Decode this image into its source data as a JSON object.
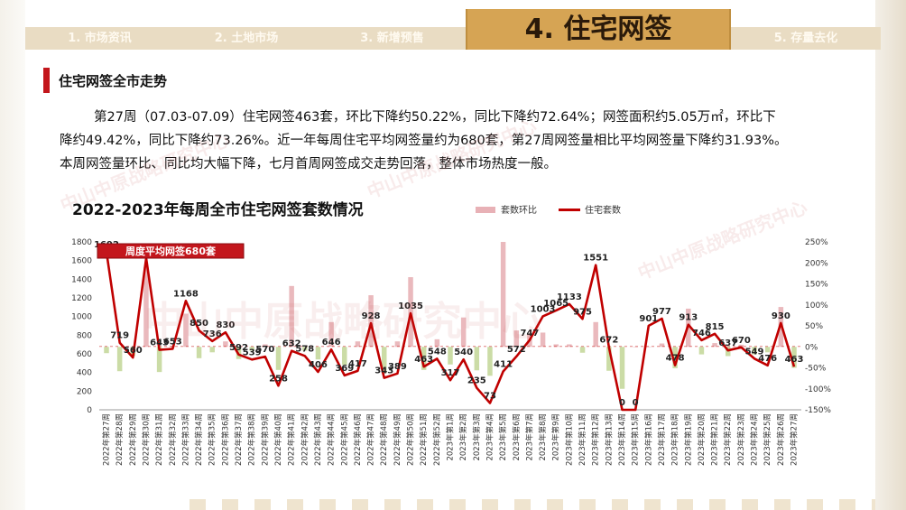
{
  "nav": {
    "tabs": [
      {
        "label": "1. 市场资讯"
      },
      {
        "label": "2. 土地市场"
      },
      {
        "label": "3. 新增预售"
      },
      {
        "label": "4. 住宅网签"
      },
      {
        "label": "5. 存量去化"
      }
    ],
    "active_index": 3
  },
  "section": {
    "title": "住宅网签全市走势"
  },
  "paragraph": [
    "第27周（07.03-07.09）住宅网签463套，环比下降约50.22%，同比下降约72.64%；网签面积约5.05万㎡，环比下",
    "降约49.42%，同比下降约73.26%。近一年每周住宅平均网签量约为680套，第27周网签量相比平均网签量下降约31.93%。",
    "本周网签量环比、同比均大幅下降，七月首周网签成交走势回落，整体市场热度一般。"
  ],
  "watermark": "中山中原战略研究中心",
  "chart_data": {
    "type": "bar+line",
    "title": "2022-2023年每周全市住宅网签套数情况",
    "legend": [
      "套数环比",
      "住宅套数"
    ],
    "annotation": "周度平均网签680套",
    "average_line": 680,
    "y_left": {
      "min": 0,
      "max": 1800,
      "ticks": [
        0,
        200,
        400,
        600,
        800,
        1000,
        1200,
        1400,
        1600,
        1800
      ]
    },
    "y_right": {
      "min": -150,
      "max": 250,
      "ticks": [
        "-150%",
        "-100%",
        "-50%",
        "0%",
        "50%",
        "100%",
        "150%",
        "200%",
        "250%"
      ]
    },
    "categories": [
      "2022年第27周",
      "2022年第28周",
      "2022年第29周",
      "2022年第30周",
      "2022年第31周",
      "2022年第32周",
      "2022年第33周",
      "2022年第34周",
      "2022年第35周",
      "2022年第36周",
      "2022年第37周",
      "2022年第38周",
      "2022年第39周",
      "2022年第40周",
      "2022年第41周",
      "2022年第42周",
      "2022年第43周",
      "2022年第44周",
      "2022年第45周",
      "2022年第46周",
      "2022年第47周",
      "2022年第48周",
      "2022年第49周",
      "2022年第50周",
      "2022年第51周",
      "2022年第52周",
      "2023年第1周",
      "2023年第2周",
      "2023年第3周",
      "2023年第4周",
      "2023年第5周",
      "2023年第6周",
      "2023年第7周",
      "2023年第8周",
      "2023年第9周",
      "2023年第10周",
      "2023年第11周",
      "2023年第12周",
      "2023年第13周",
      "2023年第14周",
      "2023年第15周",
      "2023年第16周",
      "2023年第17周",
      "2023年第18周",
      "2023年第19周",
      "2023年第20周",
      "2023年第21周",
      "2023年第22周",
      "2023年第23周",
      "2023年第24周",
      "2023年第25周",
      "2023年第26周",
      "2023年第27周"
    ],
    "series": [
      {
        "name": "住宅套数",
        "type": "line",
        "values": [
          1692,
          719,
          560,
          1625,
          643,
          653,
          1168,
          850,
          736,
          830,
          592,
          539,
          570,
          258,
          632,
          578,
          406,
          646,
          369,
          417,
          928,
          343,
          389,
          1035,
          463,
          548,
          317,
          540,
          235,
          73,
          411,
          572,
          747,
          1003,
          1065,
          1133,
          975,
          1551,
          672,
          0,
          0,
          901,
          977,
          478,
          913,
          746,
          815,
          637,
          670,
          549,
          476,
          930,
          463
        ]
      },
      {
        "name": "套数环比",
        "type": "bar",
        "values": [
          -15,
          -58,
          -22,
          190,
          -60,
          2,
          79,
          -27,
          -13,
          13,
          -29,
          -9,
          6,
          -55,
          145,
          -9,
          -30,
          59,
          -43,
          13,
          123,
          -63,
          13,
          166,
          -55,
          18,
          -42,
          70,
          -56,
          -69,
          463,
          39,
          31,
          34,
          6,
          6,
          -14,
          59,
          -57,
          -100,
          0,
          0,
          8,
          -51,
          91,
          -18,
          9,
          -22,
          5,
          -18,
          -13,
          95,
          -50
        ]
      }
    ],
    "point_labels": [
      "1692",
      "719",
      "560",
      "1625",
      "643",
      "653",
      "1168",
      "850",
      "736",
      "830",
      "592",
      "539",
      "570",
      "258",
      "632",
      "578",
      "406",
      "646",
      "369",
      "417",
      "928",
      "343",
      "389",
      "1035",
      "463",
      "548",
      "317",
      "540",
      "235",
      "73",
      "411",
      "572",
      "747",
      "1003",
      "1065",
      "1133",
      "975",
      "1551",
      "672",
      "0",
      "0",
      "901",
      "977",
      "478",
      "913",
      "746",
      "815",
      "637",
      "670",
      "549",
      "476",
      "930",
      "463"
    ]
  },
  "colors": {
    "accent_red": "#c00000",
    "bar_pink": "#e8b1b6",
    "bar_green": "#c5d89c",
    "tab_gold": "#d6a454",
    "tab_bg": "#e9dcc3"
  }
}
